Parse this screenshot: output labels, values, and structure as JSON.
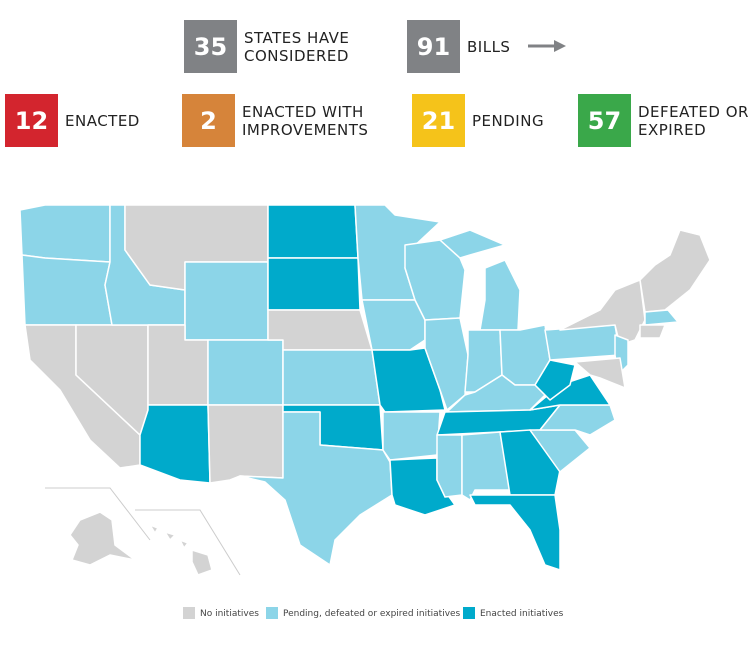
{
  "stats": [
    {
      "number": 35,
      "label": [
        "STATES HAVE",
        "CONSIDERED"
      ],
      "color": "#808285"
    },
    {
      "number": 91,
      "label": [
        "BILLS"
      ],
      "color": "#808285"
    },
    {
      "number": 12,
      "label": [
        "ENACTED"
      ],
      "color": "#d3252e"
    },
    {
      "number": 2,
      "label": [
        "ENACTED WITH",
        "IMPROVEMENTS"
      ],
      "color": "#d6843a"
    },
    {
      "number": 21,
      "label": [
        "PENDING"
      ],
      "color": "#f5c31a"
    },
    {
      "number": 57,
      "label": [
        "DEFEATED OR",
        "EXPIRED"
      ],
      "color": "#3aa84a"
    }
  ],
  "legend": [
    {
      "label": "No initiatives",
      "color": "#d3d3d3"
    },
    {
      "label": "Pending, defeated or expired initiatives",
      "color": "#8cd5e8"
    },
    {
      "label": "Enacted initiatives",
      "color": "#00aacb"
    }
  ]
}
